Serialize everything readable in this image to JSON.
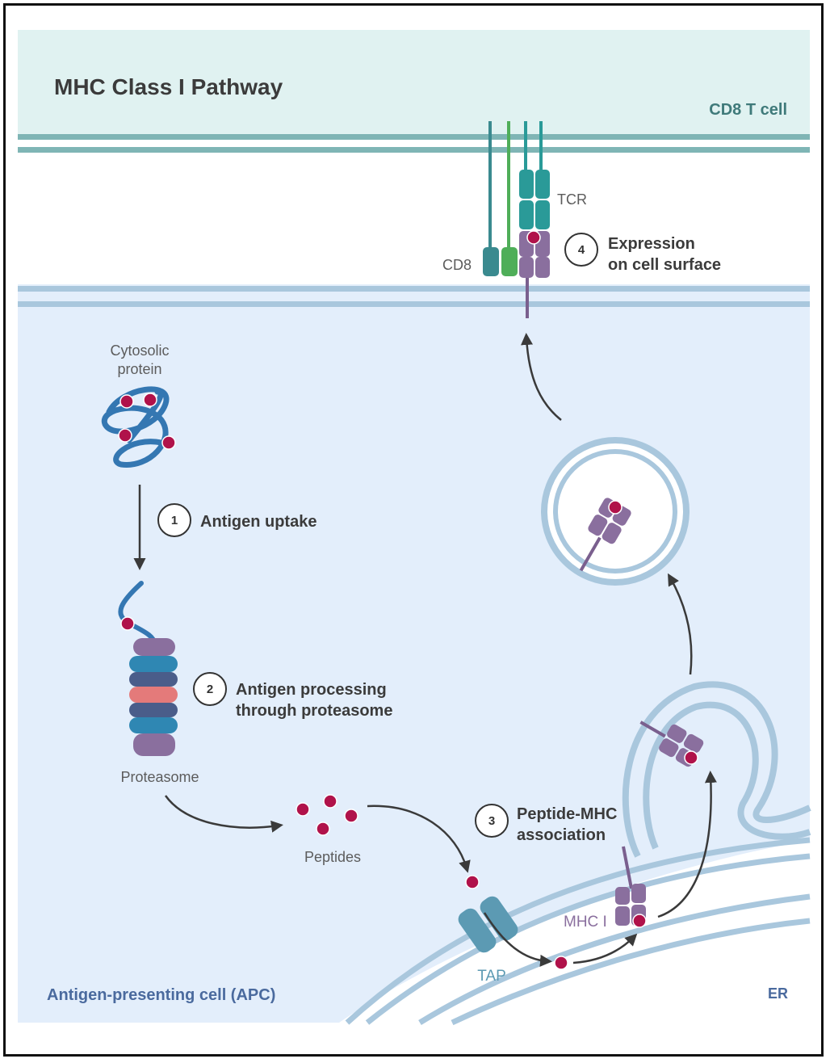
{
  "title": "MHC Class I Pathway",
  "tcell_label": "CD8 T cell",
  "apc_label": "Antigen-presenting cell (APC)",
  "er_label": "ER",
  "labels": {
    "cytosolic_line1": "Cytosolic",
    "cytosolic_line2": "protein",
    "proteasome": "Proteasome",
    "peptides": "Peptides",
    "tap": "TAP",
    "mhc1": "MHC I",
    "tcr": "TCR",
    "cd8": "CD8"
  },
  "steps": [
    {
      "number": "1",
      "line1": "Antigen uptake",
      "line2": ""
    },
    {
      "number": "2",
      "line1": "Antigen processing",
      "line2": "through proteasome"
    },
    {
      "number": "3",
      "line1": "Peptide-MHC",
      "line2": "association"
    },
    {
      "number": "4",
      "line1": "Expression",
      "line2": "on cell surface"
    }
  ],
  "colors": {
    "tcell_bg": "#e0f2f1",
    "apc_bg": "#e3eefb",
    "membrane": "#a9c7dd",
    "tcell_membrane": "#7fb5b5",
    "peptide": "#b0124a",
    "mhc": "#8a6f9e",
    "tcr": "#2a9a98",
    "cd8_a": "#3a8a8f",
    "cd8_b": "#4fae59",
    "protein": "#3477b2",
    "tap": "#5c9ab3",
    "title_text": "#3b3b3b",
    "apc_text": "#4a6a9e",
    "tcell_text": "#3f7a7a"
  }
}
